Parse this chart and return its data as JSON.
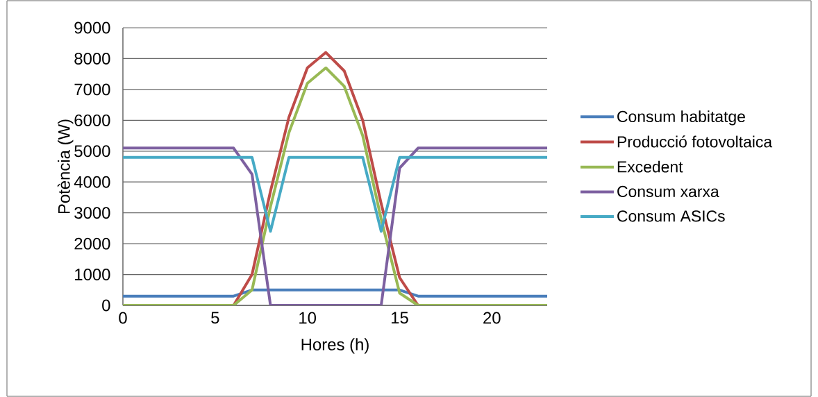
{
  "chart_data": {
    "type": "line",
    "xlabel": "Hores (h)",
    "ylabel": "Potència (W)",
    "x": [
      0,
      1,
      2,
      3,
      4,
      5,
      6,
      7,
      8,
      9,
      10,
      11,
      12,
      13,
      14,
      15,
      16,
      17,
      18,
      19,
      20,
      21,
      22,
      23
    ],
    "xlim": [
      0,
      23
    ],
    "xticks": [
      0,
      5,
      10,
      15,
      20
    ],
    "ylim": [
      0,
      9000
    ],
    "yticks": [
      0,
      1000,
      2000,
      3000,
      4000,
      5000,
      6000,
      7000,
      8000,
      9000
    ],
    "grid": "y",
    "legend": "right",
    "marker": "none",
    "line_style": "solid",
    "series": [
      {
        "name": "Consum habitatge",
        "color": "#4a7ebb",
        "values": [
          300,
          300,
          300,
          300,
          300,
          300,
          300,
          500,
          500,
          500,
          500,
          500,
          500,
          500,
          500,
          500,
          300,
          300,
          300,
          300,
          300,
          300,
          300,
          300
        ]
      },
      {
        "name": "Producció fotovoltaica",
        "color": "#be4b48",
        "values": [
          null,
          null,
          null,
          null,
          null,
          null,
          0,
          1000,
          3700,
          6100,
          7700,
          8200,
          7600,
          6000,
          3300,
          900,
          0,
          null,
          null,
          null,
          null,
          null,
          null,
          null
        ]
      },
      {
        "name": "Excedent",
        "color": "#98b954",
        "values": [
          0,
          0,
          0,
          0,
          0,
          0,
          0,
          500,
          3200,
          5600,
          7200,
          7700,
          7100,
          5500,
          2800,
          400,
          0,
          0,
          0,
          0,
          0,
          0,
          0,
          0
        ]
      },
      {
        "name": "Consum xarxa",
        "color": "#7d60a0",
        "values": [
          5100,
          5100,
          5100,
          5100,
          5100,
          5100,
          5100,
          4250,
          0,
          0,
          0,
          0,
          0,
          0,
          0,
          4450,
          5100,
          5100,
          5100,
          5100,
          5100,
          5100,
          5100,
          5100
        ]
      },
      {
        "name": "Consum ASICs",
        "color": "#46aac5",
        "values": [
          4800,
          4800,
          4800,
          4800,
          4800,
          4800,
          4800,
          4800,
          2400,
          4800,
          4800,
          4800,
          4800,
          4800,
          2400,
          4800,
          4800,
          4800,
          4800,
          4800,
          4800,
          4800,
          4800,
          4800
        ]
      }
    ]
  }
}
